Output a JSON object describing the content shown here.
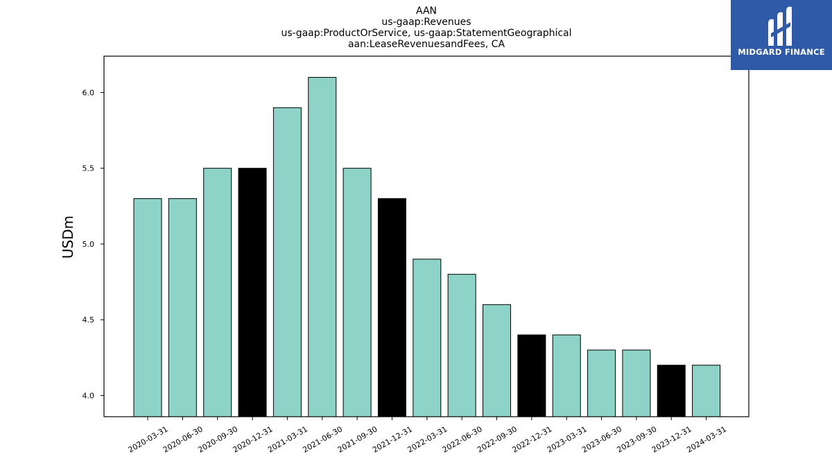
{
  "chart_data": {
    "type": "bar",
    "title_lines": [
      "AAN",
      "us-gaap:Revenues",
      "us-gaap:ProductOrService, us-gaap:StatementGeographical",
      "aan:LeaseRevenuesandFees, CA"
    ],
    "xlabel": "",
    "ylabel": "USDm",
    "categories": [
      "2020-03-31",
      "2020-06-30",
      "2020-09-30",
      "2020-12-31",
      "2021-03-31",
      "2021-06-30",
      "2021-09-30",
      "2021-12-31",
      "2022-03-31",
      "2022-06-30",
      "2022-09-30",
      "2022-12-31",
      "2023-03-31",
      "2023-06-30",
      "2023-09-30",
      "2023-12-31",
      "2024-03-31"
    ],
    "values": [
      5.3,
      5.3,
      5.5,
      5.5,
      5.9,
      6.1,
      5.5,
      5.3,
      4.9,
      4.8,
      4.6,
      4.4,
      4.4,
      4.3,
      4.3,
      4.2,
      4.2
    ],
    "highlight": [
      false,
      false,
      false,
      true,
      false,
      false,
      false,
      true,
      false,
      false,
      false,
      true,
      false,
      false,
      false,
      true,
      false
    ],
    "ylim": [
      3.86,
      6.24
    ],
    "yticks": [
      4.0,
      4.5,
      5.0,
      5.5,
      6.0
    ],
    "ytick_labels": [
      "4.0",
      "4.5",
      "5.0",
      "5.5",
      "6.0"
    ],
    "colors": {
      "bar": "#8dd3c7",
      "highlight": "#000000",
      "edge": "#000000"
    },
    "grid": false,
    "legend": "none"
  },
  "logo": {
    "text": "MIDGARD FINANCE",
    "background": "#2f5aa8"
  }
}
